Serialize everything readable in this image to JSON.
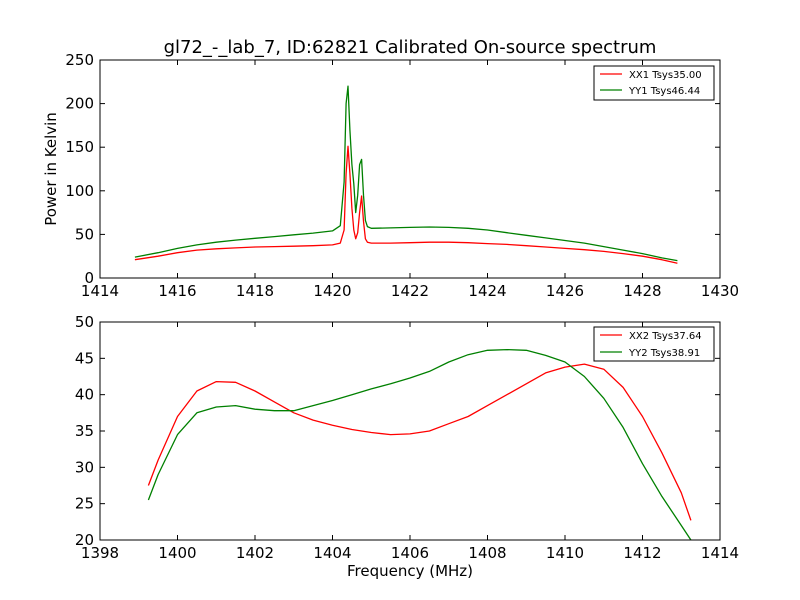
{
  "title": "gl72_-_lab_7, ID:62821 Calibrated On-source spectrum",
  "colors": {
    "xx": "#ff0000",
    "yy": "#008000"
  },
  "chart_data": [
    {
      "type": "line",
      "ylabel": "Power in Kelvin",
      "xlabel": "",
      "xlim": [
        1414,
        1430
      ],
      "ylim": [
        0,
        250
      ],
      "x_ticks": [
        "1414",
        "1416",
        "1418",
        "1420",
        "1422",
        "1424",
        "1426",
        "1428",
        "1430"
      ],
      "y_ticks": [
        "0",
        "50",
        "100",
        "150",
        "200",
        "250"
      ],
      "legend_position": "top-right",
      "series": [
        {
          "name": "XX1 Tsys35.00",
          "color": "#ff0000",
          "x": [
            1414.9,
            1415.5,
            1416,
            1416.5,
            1417,
            1417.5,
            1418,
            1418.5,
            1419,
            1419.5,
            1420,
            1420.2,
            1420.3,
            1420.35,
            1420.4,
            1420.45,
            1420.5,
            1420.55,
            1420.6,
            1420.65,
            1420.7,
            1420.75,
            1420.8,
            1420.85,
            1420.9,
            1421.0,
            1421.5,
            1422,
            1422.5,
            1423,
            1423.5,
            1424,
            1424.5,
            1425,
            1425.5,
            1426,
            1426.5,
            1427,
            1427.5,
            1428,
            1428.5,
            1428.9
          ],
          "values": [
            21,
            25,
            29,
            32,
            33.5,
            34.5,
            35.5,
            36,
            36.5,
            37,
            38,
            40,
            55,
            120,
            151,
            120,
            80,
            55,
            45,
            52,
            75,
            94,
            65,
            45,
            41,
            40,
            40,
            40.5,
            41,
            41,
            40.5,
            39.5,
            38.5,
            37,
            35.5,
            34,
            32.5,
            30.5,
            28,
            25,
            21,
            17
          ]
        },
        {
          "name": "YY1 Tsys46.44",
          "color": "#008000",
          "x": [
            1414.9,
            1415.5,
            1416,
            1416.5,
            1417,
            1417.5,
            1418,
            1418.5,
            1419,
            1419.5,
            1420,
            1420.2,
            1420.3,
            1420.35,
            1420.4,
            1420.45,
            1420.5,
            1420.55,
            1420.6,
            1420.65,
            1420.7,
            1420.75,
            1420.8,
            1420.85,
            1420.9,
            1421.0,
            1421.5,
            1422,
            1422.5,
            1423,
            1423.5,
            1424,
            1424.5,
            1425,
            1425.5,
            1426,
            1426.5,
            1427,
            1427.5,
            1428,
            1428.5,
            1428.9
          ],
          "values": [
            24,
            29,
            34,
            38,
            41,
            43.5,
            45.5,
            47.5,
            49.5,
            51.5,
            54,
            60,
            110,
            200,
            220,
            170,
            130,
            108,
            75,
            95,
            130,
            136,
            95,
            66,
            59,
            57,
            57.5,
            58,
            58.5,
            58,
            57,
            55,
            52,
            49,
            46,
            43,
            40,
            36,
            32,
            28,
            23,
            20
          ]
        }
      ]
    },
    {
      "type": "line",
      "ylabel": "",
      "xlabel": "Frequency (MHz)",
      "xlim": [
        1398,
        1414
      ],
      "ylim": [
        20,
        50
      ],
      "x_ticks": [
        "1398",
        "1400",
        "1402",
        "1404",
        "1406",
        "1408",
        "1410",
        "1412",
        "1414"
      ],
      "y_ticks": [
        "20",
        "25",
        "30",
        "35",
        "40",
        "45",
        "50"
      ],
      "legend_position": "top-right",
      "series": [
        {
          "name": "XX2 Tsys37.64",
          "color": "#ff0000",
          "x": [
            1399.25,
            1399.5,
            1400,
            1400.5,
            1401,
            1401.5,
            1402,
            1402.5,
            1403,
            1403.5,
            1404,
            1404.5,
            1405,
            1405.5,
            1406,
            1406.5,
            1407,
            1407.5,
            1408,
            1408.5,
            1409,
            1409.5,
            1410,
            1410.5,
            1411,
            1411.5,
            1412,
            1412.5,
            1413,
            1413.25
          ],
          "values": [
            27.5,
            31,
            37,
            40.5,
            41.8,
            41.7,
            40.5,
            39,
            37.5,
            36.5,
            35.8,
            35.2,
            34.8,
            34.5,
            34.6,
            35,
            36,
            37,
            38.5,
            40,
            41.5,
            43,
            43.8,
            44.2,
            43.5,
            41,
            37,
            32,
            26.5,
            22.7
          ]
        },
        {
          "name": "YY2 Tsys38.91",
          "color": "#008000",
          "x": [
            1399.25,
            1399.5,
            1400,
            1400.5,
            1401,
            1401.5,
            1402,
            1402.5,
            1403,
            1403.5,
            1404,
            1404.5,
            1405,
            1405.5,
            1406,
            1406.5,
            1407,
            1407.5,
            1408,
            1408.5,
            1409,
            1409.5,
            1410,
            1410.5,
            1411,
            1411.5,
            1412,
            1412.5,
            1413,
            1413.25
          ],
          "values": [
            25.5,
            29,
            34.5,
            37.5,
            38.3,
            38.5,
            38,
            37.8,
            37.8,
            38.5,
            39.2,
            40,
            40.8,
            41.5,
            42.3,
            43.2,
            44.5,
            45.5,
            46.1,
            46.2,
            46.1,
            45.4,
            44.5,
            42.5,
            39.5,
            35.5,
            30.5,
            26,
            22,
            20
          ]
        }
      ]
    }
  ]
}
